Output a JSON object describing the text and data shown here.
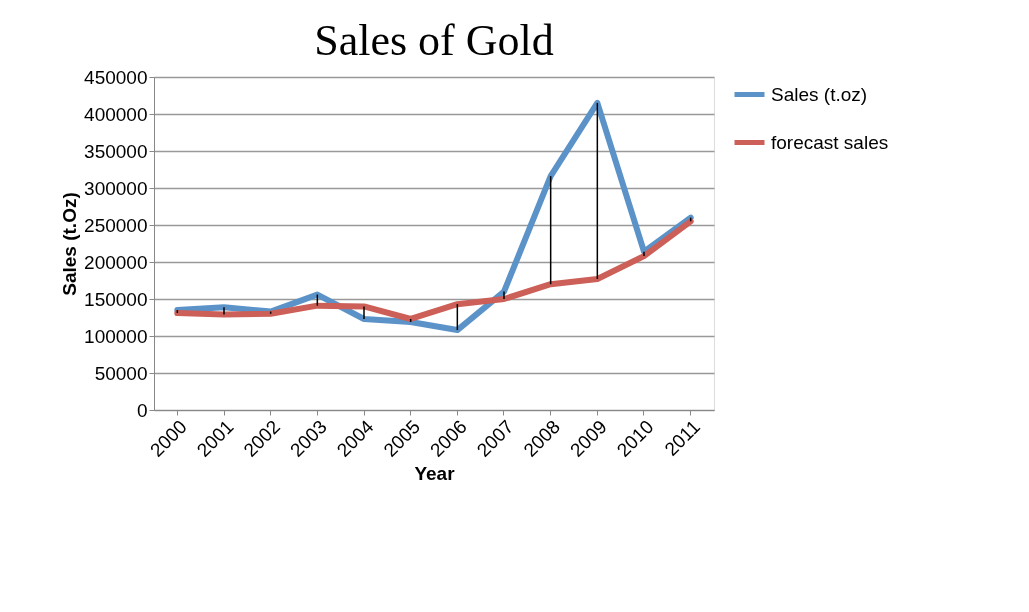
{
  "chart_data": {
    "type": "line",
    "title": "Sales of Gold",
    "xlabel": "Year",
    "ylabel": "Sales (t.Oz)",
    "categories": [
      "2000",
      "2001",
      "2002",
      "2003",
      "2004",
      "2005",
      "2006",
      "2007",
      "2008",
      "2009",
      "2010",
      "2011"
    ],
    "series": [
      {
        "name": "Sales (t.oz)",
        "color": "#5b93c9",
        "values": [
          135000,
          139000,
          133000,
          156000,
          123000,
          119000,
          108000,
          160000,
          316000,
          415000,
          214000,
          260000
        ]
      },
      {
        "name": "forecast sales",
        "color": "#cc5f57",
        "values": [
          131000,
          129000,
          130000,
          141000,
          140000,
          123000,
          143000,
          150000,
          170000,
          177000,
          208000,
          255000
        ],
        "errors": [
          [
            131000,
            135000
          ],
          [
            129000,
            139000
          ],
          [
            130000,
            133000
          ],
          [
            141000,
            156000
          ],
          [
            123000,
            140000
          ],
          [
            119000,
            123000
          ],
          [
            108000,
            143000
          ],
          [
            150000,
            160000
          ],
          [
            170000,
            316000
          ],
          [
            177000,
            415000
          ],
          [
            208000,
            214000
          ],
          [
            255000,
            260000
          ]
        ]
      }
    ],
    "ylim": [
      0,
      450000
    ],
    "yticks": [
      0,
      50000,
      100000,
      150000,
      200000,
      250000,
      300000,
      350000,
      400000,
      450000
    ],
    "grid": "y",
    "legend": "right",
    "marker": "none",
    "line_style": "solid"
  }
}
